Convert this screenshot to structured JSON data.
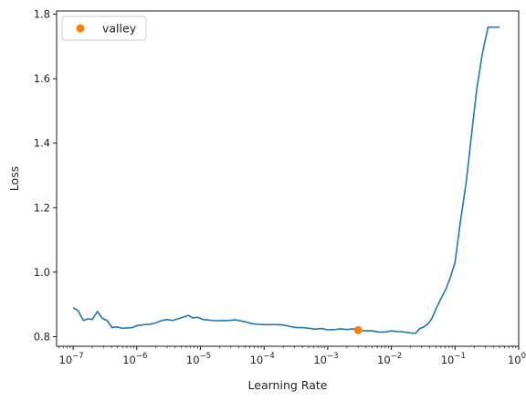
{
  "chart_data": {
    "type": "line",
    "xscale": "log",
    "xlabel": "Learning Rate",
    "ylabel": "Loss",
    "xlim": [
      5.5e-08,
      1.0
    ],
    "ylim": [
      0.77,
      1.81
    ],
    "x_ticks": [
      {
        "value": 1e-07,
        "base": "10",
        "exp": "−7"
      },
      {
        "value": 1e-06,
        "base": "10",
        "exp": "−6"
      },
      {
        "value": 1e-05,
        "base": "10",
        "exp": "−5"
      },
      {
        "value": 0.0001,
        "base": "10",
        "exp": "−4"
      },
      {
        "value": 0.001,
        "base": "10",
        "exp": "−3"
      },
      {
        "value": 0.01,
        "base": "10",
        "exp": "−2"
      },
      {
        "value": 0.1,
        "base": "10",
        "exp": "−1"
      },
      {
        "value": 1,
        "base": "10",
        "exp": "0"
      }
    ],
    "y_ticks": [
      "0.8",
      "1.0",
      "1.2",
      "1.4",
      "1.6",
      "1.8"
    ],
    "series": [
      {
        "color": "#1f77b4",
        "x": [
          1e-07,
          1.2e-07,
          1.45e-07,
          1.7e-07,
          2e-07,
          2.4e-07,
          2.9e-07,
          3.4e-07,
          4.1e-07,
          4.9e-07,
          5.9e-07,
          7.1e-07,
          8.5e-07,
          1e-06,
          1.3e-06,
          1.6e-06,
          2e-06,
          2.5e-06,
          3e-06,
          3.7e-06,
          4.4e-06,
          5.5e-06,
          6.5e-06,
          7.5e-06,
          9e-06,
          1.1e-05,
          1.4e-05,
          1.8e-05,
          2.2e-05,
          2.8e-05,
          3.5e-05,
          4.2e-05,
          5.3e-05,
          6.5e-05,
          8e-05,
          0.0001,
          0.00013,
          0.00016,
          0.0002,
          0.00025,
          0.00032,
          0.0004,
          0.0005,
          0.00063,
          0.0008,
          0.001,
          0.0013,
          0.0016,
          0.002,
          0.0025,
          0.003,
          0.0036,
          0.0042,
          0.005,
          0.0063,
          0.008,
          0.01,
          0.012,
          0.015,
          0.019,
          0.024,
          0.028,
          0.032,
          0.037,
          0.043,
          0.05,
          0.059,
          0.071,
          0.085,
          0.1,
          0.12,
          0.15,
          0.18,
          0.22,
          0.27,
          0.33,
          0.4,
          0.5
        ],
        "y": [
          0.89,
          0.88,
          0.85,
          0.855,
          0.853,
          0.878,
          0.856,
          0.85,
          0.828,
          0.83,
          0.826,
          0.827,
          0.828,
          0.834,
          0.837,
          0.838,
          0.843,
          0.85,
          0.853,
          0.85,
          0.855,
          0.861,
          0.866,
          0.858,
          0.86,
          0.853,
          0.851,
          0.849,
          0.85,
          0.85,
          0.852,
          0.849,
          0.845,
          0.84,
          0.838,
          0.837,
          0.837,
          0.837,
          0.836,
          0.832,
          0.828,
          0.828,
          0.826,
          0.823,
          0.825,
          0.821,
          0.822,
          0.824,
          0.822,
          0.824,
          0.822,
          0.818,
          0.818,
          0.818,
          0.814,
          0.814,
          0.818,
          0.816,
          0.815,
          0.812,
          0.81,
          0.825,
          0.83,
          0.838,
          0.855,
          0.885,
          0.915,
          0.945,
          0.985,
          1.03,
          1.15,
          1.28,
          1.42,
          1.57,
          1.68,
          1.76,
          1.76,
          1.76
        ]
      }
    ],
    "points": [
      {
        "name": "valley",
        "x": 0.003,
        "y": 0.82,
        "color": "#ff7f0e"
      }
    ],
    "legend": {
      "position": "upper-left",
      "entries": [
        {
          "label": "valley",
          "color": "#ff7f0e",
          "marker": "circle"
        }
      ]
    },
    "grid": false
  }
}
